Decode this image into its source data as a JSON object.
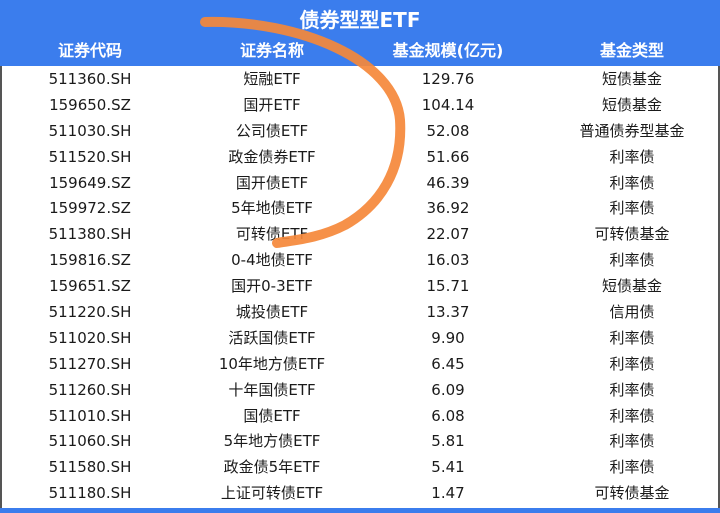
{
  "title": "债券型型ETF",
  "columns": [
    "证券代码",
    "证券名称",
    "基金规模(亿元)",
    "基金类型"
  ],
  "rows": [
    [
      "511360.SH",
      "短融ETF",
      "129.76",
      "短债基金"
    ],
    [
      "159650.SZ",
      "国开ETF",
      "104.14",
      "短债基金"
    ],
    [
      "511030.SH",
      "公司债ETF",
      "52.08",
      "普通债券型基金"
    ],
    [
      "511520.SH",
      "政金债券ETF",
      "51.66",
      "利率债"
    ],
    [
      "159649.SZ",
      "国开债ETF",
      "46.39",
      "利率债"
    ],
    [
      "159972.SZ",
      "5年地债ETF",
      "36.92",
      "利率债"
    ],
    [
      "511380.SH",
      "可转债ETF",
      "22.07",
      "可转债基金"
    ],
    [
      "159816.SZ",
      "0-4地债ETF",
      "16.03",
      "利率债"
    ],
    [
      "159651.SZ",
      "国开0-3ETF",
      "15.71",
      "短债基金"
    ],
    [
      "511220.SH",
      "城投债ETF",
      "13.37",
      "信用债"
    ],
    [
      "511020.SH",
      "活跃国债ETF",
      "9.90",
      "利率债"
    ],
    [
      "511270.SH",
      "10年地方债ETF",
      "6.45",
      "利率债"
    ],
    [
      "511260.SH",
      "十年国债ETF",
      "6.09",
      "利率债"
    ],
    [
      "511010.SH",
      "国债ETF",
      "6.08",
      "利率债"
    ],
    [
      "511060.SH",
      "5年地方债ETF",
      "5.81",
      "利率债"
    ],
    [
      "511580.SH",
      "政金债5年ETF",
      "5.41",
      "利率债"
    ],
    [
      "511180.SH",
      "上证可转债ETF",
      "1.47",
      "可转债基金"
    ]
  ],
  "colors": {
    "header": "#3b7ded",
    "annotation": "#f5883a"
  }
}
